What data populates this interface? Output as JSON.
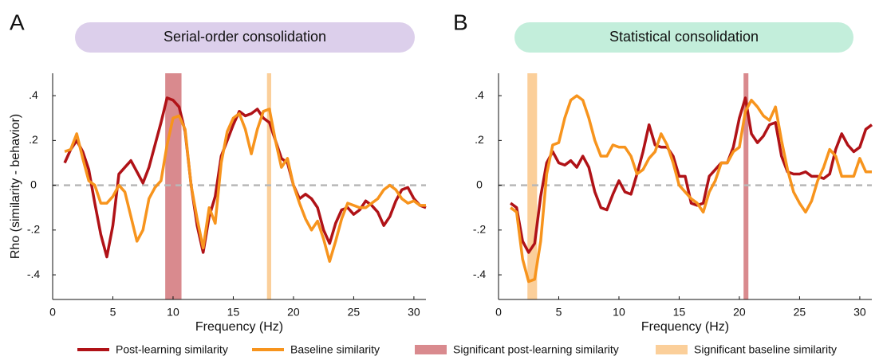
{
  "chart_data": [
    {
      "type": "line",
      "panel_label": "A",
      "title": "Serial-order consolidation",
      "title_background": "#dccfeb",
      "x_label": "Frequency (Hz)",
      "y_label": "Rho (similarity - behavior)",
      "x": [
        1,
        1.5,
        2,
        2.5,
        3,
        3.5,
        4,
        4.5,
        5,
        5.5,
        6,
        6.5,
        7,
        7.5,
        8,
        8.5,
        9,
        9.5,
        10,
        10.5,
        11,
        11.5,
        12,
        12.5,
        13,
        13.5,
        14,
        14.5,
        15,
        15.5,
        16,
        16.5,
        17,
        17.5,
        18,
        18.5,
        19,
        19.5,
        20,
        20.5,
        21,
        21.5,
        22,
        22.5,
        23,
        23.5,
        24,
        24.5,
        25,
        25.5,
        26,
        26.5,
        27,
        27.5,
        28,
        28.5,
        29,
        29.5,
        30,
        30.5,
        31
      ],
      "series": [
        {
          "name": "Post-learning similarity",
          "color": "#b01217",
          "values": [
            0.1,
            0.16,
            0.2,
            0.15,
            0.07,
            -0.08,
            -0.22,
            -0.32,
            -0.18,
            0.05,
            0.08,
            0.11,
            0.06,
            0.01,
            0.08,
            0.18,
            0.28,
            0.39,
            0.38,
            0.35,
            0.24,
            0.0,
            -0.18,
            -0.3,
            -0.14,
            -0.05,
            0.13,
            0.2,
            0.27,
            0.33,
            0.31,
            0.32,
            0.34,
            0.3,
            0.28,
            0.2,
            0.12,
            0.1,
            0.0,
            -0.06,
            -0.04,
            -0.06,
            -0.1,
            -0.2,
            -0.26,
            -0.17,
            -0.11,
            -0.1,
            -0.13,
            -0.11,
            -0.07,
            -0.09,
            -0.12,
            -0.18,
            -0.14,
            -0.07,
            -0.02,
            -0.01,
            -0.06,
            -0.09,
            -0.1
          ]
        },
        {
          "name": "Baseline similarity",
          "color": "#f7941d",
          "values": [
            0.15,
            0.16,
            0.23,
            0.12,
            0.02,
            0.0,
            -0.08,
            -0.08,
            -0.05,
            0.0,
            -0.03,
            -0.14,
            -0.25,
            -0.2,
            -0.06,
            -0.01,
            0.02,
            0.18,
            0.3,
            0.31,
            0.25,
            0.0,
            -0.15,
            -0.28,
            -0.1,
            -0.17,
            0.1,
            0.24,
            0.3,
            0.32,
            0.25,
            0.14,
            0.25,
            0.33,
            0.34,
            0.2,
            0.08,
            0.12,
            0.0,
            -0.08,
            -0.15,
            -0.2,
            -0.16,
            -0.24,
            -0.34,
            -0.25,
            -0.15,
            -0.08,
            -0.09,
            -0.1,
            -0.1,
            -0.08,
            -0.06,
            -0.02,
            0.0,
            -0.02,
            -0.06,
            -0.08,
            -0.07,
            -0.09,
            -0.09
          ]
        }
      ],
      "bands": [
        {
          "name": "Significant post-learning similarity",
          "color": "#d98a8e",
          "x": [
            9.35,
            10.7
          ]
        },
        {
          "name": "Significant baseline similarity",
          "color": "#fbcf9a",
          "x": [
            17.8,
            18.15
          ]
        }
      ],
      "reference_line": {
        "y": 0,
        "color": "#b8b8b8",
        "dashed": true
      },
      "xlim": [
        0,
        31
      ],
      "ylim": [
        -0.51,
        0.5
      ],
      "xticks": [
        0,
        5,
        10,
        15,
        20,
        25,
        30
      ],
      "yticks": [
        {
          "value": -0.4,
          "label": "-.4"
        },
        {
          "value": -0.2,
          "label": "-.2"
        },
        0,
        {
          "value": 0.2,
          "label": ".2"
        },
        {
          "value": 0.4,
          "label": ".4"
        }
      ]
    },
    {
      "type": "line",
      "panel_label": "B",
      "title": "Statistical consolidation",
      "title_background": "#c3eedb",
      "x_label": "Frequency (Hz)",
      "x": [
        1,
        1.5,
        2,
        2.5,
        3,
        3.5,
        4,
        4.5,
        5,
        5.5,
        6,
        6.5,
        7,
        7.5,
        8,
        8.5,
        9,
        9.5,
        10,
        10.5,
        11,
        11.5,
        12,
        12.5,
        13,
        13.5,
        14,
        14.5,
        15,
        15.5,
        16,
        16.5,
        17,
        17.5,
        18,
        18.5,
        19,
        19.5,
        20,
        20.5,
        21,
        21.5,
        22,
        22.5,
        23,
        23.5,
        24,
        24.5,
        25,
        25.5,
        26,
        26.5,
        27,
        27.5,
        28,
        28.5,
        29,
        29.5,
        30,
        30.5,
        31
      ],
      "series": [
        {
          "color": "#b01217",
          "values": [
            -0.08,
            -0.1,
            -0.25,
            -0.3,
            -0.26,
            -0.05,
            0.1,
            0.15,
            0.1,
            0.09,
            0.11,
            0.08,
            0.13,
            0.08,
            -0.03,
            -0.1,
            -0.11,
            -0.04,
            0.02,
            -0.03,
            -0.04,
            0.05,
            0.15,
            0.27,
            0.18,
            0.17,
            0.17,
            0.13,
            0.04,
            0.04,
            -0.08,
            -0.09,
            -0.08,
            0.04,
            0.07,
            0.1,
            0.1,
            0.17,
            0.3,
            0.39,
            0.23,
            0.19,
            0.22,
            0.27,
            0.28,
            0.13,
            0.06,
            0.05,
            0.05,
            0.06,
            0.04,
            0.04,
            0.03,
            0.05,
            0.16,
            0.23,
            0.18,
            0.15,
            0.17,
            0.25,
            0.27
          ]
        },
        {
          "color": "#f7941d",
          "values": [
            -0.1,
            -0.12,
            -0.33,
            -0.43,
            -0.42,
            -0.25,
            0.05,
            0.18,
            0.19,
            0.3,
            0.38,
            0.4,
            0.38,
            0.3,
            0.2,
            0.13,
            0.13,
            0.18,
            0.17,
            0.17,
            0.13,
            0.05,
            0.07,
            0.12,
            0.15,
            0.23,
            0.18,
            0.1,
            0.0,
            -0.03,
            -0.06,
            -0.08,
            -0.12,
            -0.03,
            0.02,
            0.1,
            0.1,
            0.15,
            0.17,
            0.33,
            0.38,
            0.35,
            0.31,
            0.29,
            0.35,
            0.2,
            0.07,
            -0.03,
            -0.08,
            -0.12,
            -0.07,
            0.02,
            0.08,
            0.16,
            0.13,
            0.04,
            0.04,
            0.04,
            0.12,
            0.06,
            0.06
          ]
        }
      ],
      "bands": [
        {
          "color": "#fbcf9a",
          "x": [
            2.4,
            3.2
          ]
        },
        {
          "color": "#d98a8e",
          "x": [
            20.35,
            20.75
          ]
        }
      ],
      "reference_line": {
        "y": 0,
        "color": "#b8b8b8",
        "dashed": true
      },
      "xlim": [
        0,
        31
      ],
      "ylim": [
        -0.51,
        0.5
      ],
      "xticks": [
        0,
        5,
        10,
        15,
        20,
        25,
        30
      ],
      "yticks": [
        {
          "value": -0.4,
          "label": "-.4"
        },
        {
          "value": -0.2,
          "label": "-.2"
        },
        0,
        {
          "value": 0.2,
          "label": ".2"
        },
        {
          "value": 0.4,
          "label": ".4"
        }
      ]
    }
  ]
}
